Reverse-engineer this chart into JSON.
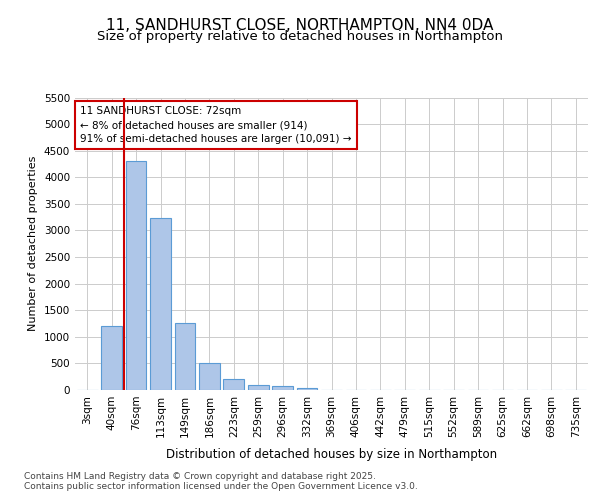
{
  "title1": "11, SANDHURST CLOSE, NORTHAMPTON, NN4 0DA",
  "title2": "Size of property relative to detached houses in Northampton",
  "xlabel": "Distribution of detached houses by size in Northampton",
  "ylabel": "Number of detached properties",
  "categories": [
    "3sqm",
    "40sqm",
    "76sqm",
    "113sqm",
    "149sqm",
    "186sqm",
    "223sqm",
    "259sqm",
    "296sqm",
    "332sqm",
    "369sqm",
    "406sqm",
    "442sqm",
    "479sqm",
    "515sqm",
    "552sqm",
    "589sqm",
    "625sqm",
    "662sqm",
    "698sqm",
    "735sqm"
  ],
  "values": [
    0,
    1210,
    4310,
    3240,
    1260,
    500,
    205,
    100,
    70,
    45,
    0,
    0,
    0,
    0,
    0,
    0,
    0,
    0,
    0,
    0,
    0
  ],
  "bar_color": "#aec6e8",
  "bar_edge_color": "#5b9bd5",
  "vline_x": 1.5,
  "vline_color": "#cc0000",
  "ann_line1": "11 SANDHURST CLOSE: 72sqm",
  "ann_line2": "← 8% of detached houses are smaller (914)",
  "ann_line3": "91% of semi-detached houses are larger (10,091) →",
  "annotation_box_color": "#ffffff",
  "annotation_box_edge": "#cc0000",
  "ylim_max": 5500,
  "yticks": [
    0,
    500,
    1000,
    1500,
    2000,
    2500,
    3000,
    3500,
    4000,
    4500,
    5000,
    5500
  ],
  "footer1": "Contains HM Land Registry data © Crown copyright and database right 2025.",
  "footer2": "Contains public sector information licensed under the Open Government Licence v3.0.",
  "bg_color": "#ffffff",
  "grid_color": "#cccccc",
  "title1_fontsize": 11,
  "title2_fontsize": 9.5,
  "ylabel_fontsize": 8,
  "xlabel_fontsize": 8.5,
  "tick_fontsize": 7.5,
  "ann_fontsize": 7.5,
  "footer_fontsize": 6.5,
  "bar_width": 0.85
}
